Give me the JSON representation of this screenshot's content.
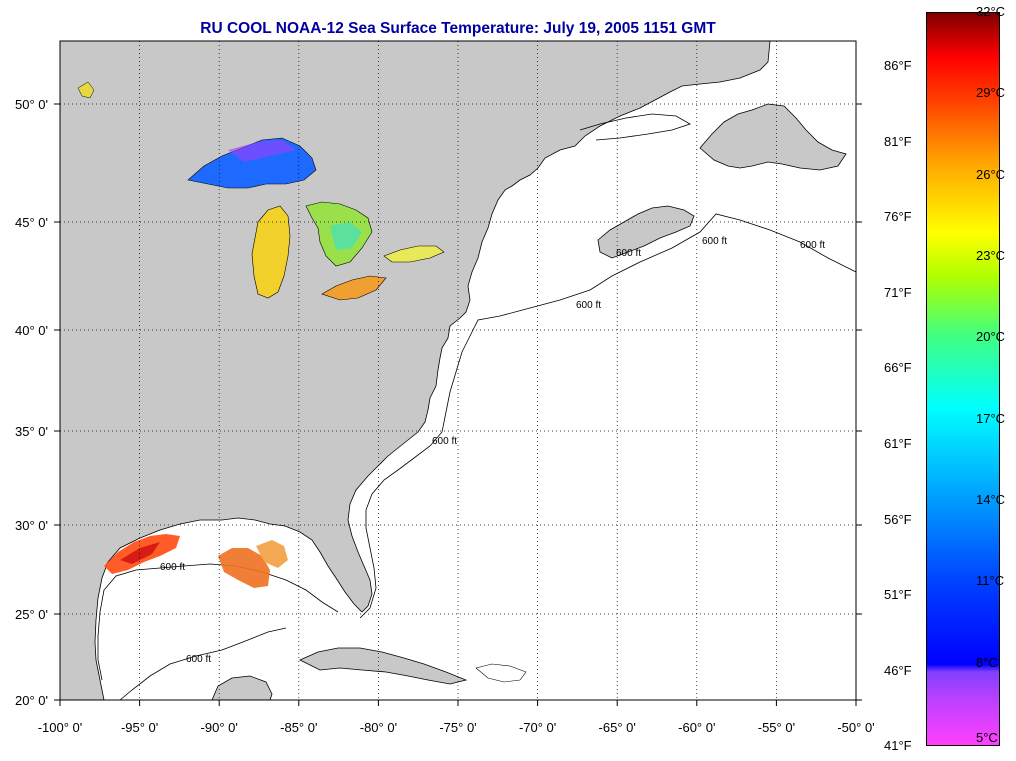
{
  "title": "RU COOL  NOAA-12  Sea Surface Temperature:  July 19, 2005 1151 GMT",
  "map": {
    "lon_range": [
      -100,
      -50
    ],
    "lat_range": [
      20,
      52
    ],
    "x_ticks": [
      {
        "lon": -100,
        "label": "-100° 0'"
      },
      {
        "lon": -95,
        "label": "-95° 0'"
      },
      {
        "lon": -90,
        "label": "-90° 0'"
      },
      {
        "lon": -85,
        "label": "-85° 0'"
      },
      {
        "lon": -80,
        "label": "-80° 0'"
      },
      {
        "lon": -75,
        "label": "-75° 0'"
      },
      {
        "lon": -70,
        "label": "-70° 0'"
      },
      {
        "lon": -65,
        "label": "-65° 0'"
      },
      {
        "lon": -60,
        "label": "-60° 0'"
      },
      {
        "lon": -55,
        "label": "-55° 0'"
      },
      {
        "lon": -50,
        "label": "-50° 0'"
      }
    ],
    "y_ticks": [
      {
        "lat": 50,
        "label": "50° 0'"
      },
      {
        "lat": 45,
        "label": "45° 0'"
      },
      {
        "lat": 40,
        "label": "40° 0'"
      },
      {
        "lat": 35,
        "label": "35° 0'"
      },
      {
        "lat": 30,
        "label": "30° 0'"
      },
      {
        "lat": 25,
        "label": "25° 0'"
      },
      {
        "lat": 20,
        "label": "20° 0'"
      }
    ],
    "contour_label": "600 ft",
    "land_color": "#c8c8c8",
    "ocean_color": "#ffffff",
    "grid": "dotted"
  },
  "colorbar": {
    "celsius": [
      "32°C",
      "29°C",
      "26°C",
      "23°C",
      "20°C",
      "17°C",
      "14°C",
      "11°C",
      "8°C",
      "5°C"
    ],
    "fahrenheit": [
      "86°F",
      "81°F",
      "76°F",
      "71°F",
      "66°F",
      "61°F",
      "56°F",
      "51°F",
      "46°F",
      "41°F"
    ],
    "range_c": [
      5,
      32
    ],
    "colors": [
      "#ff40ff",
      "#8030ff",
      "#0000ff",
      "#0080ff",
      "#00ffff",
      "#00ff80",
      "#ffff00",
      "#ff8000",
      "#ff0000",
      "#800000"
    ]
  }
}
